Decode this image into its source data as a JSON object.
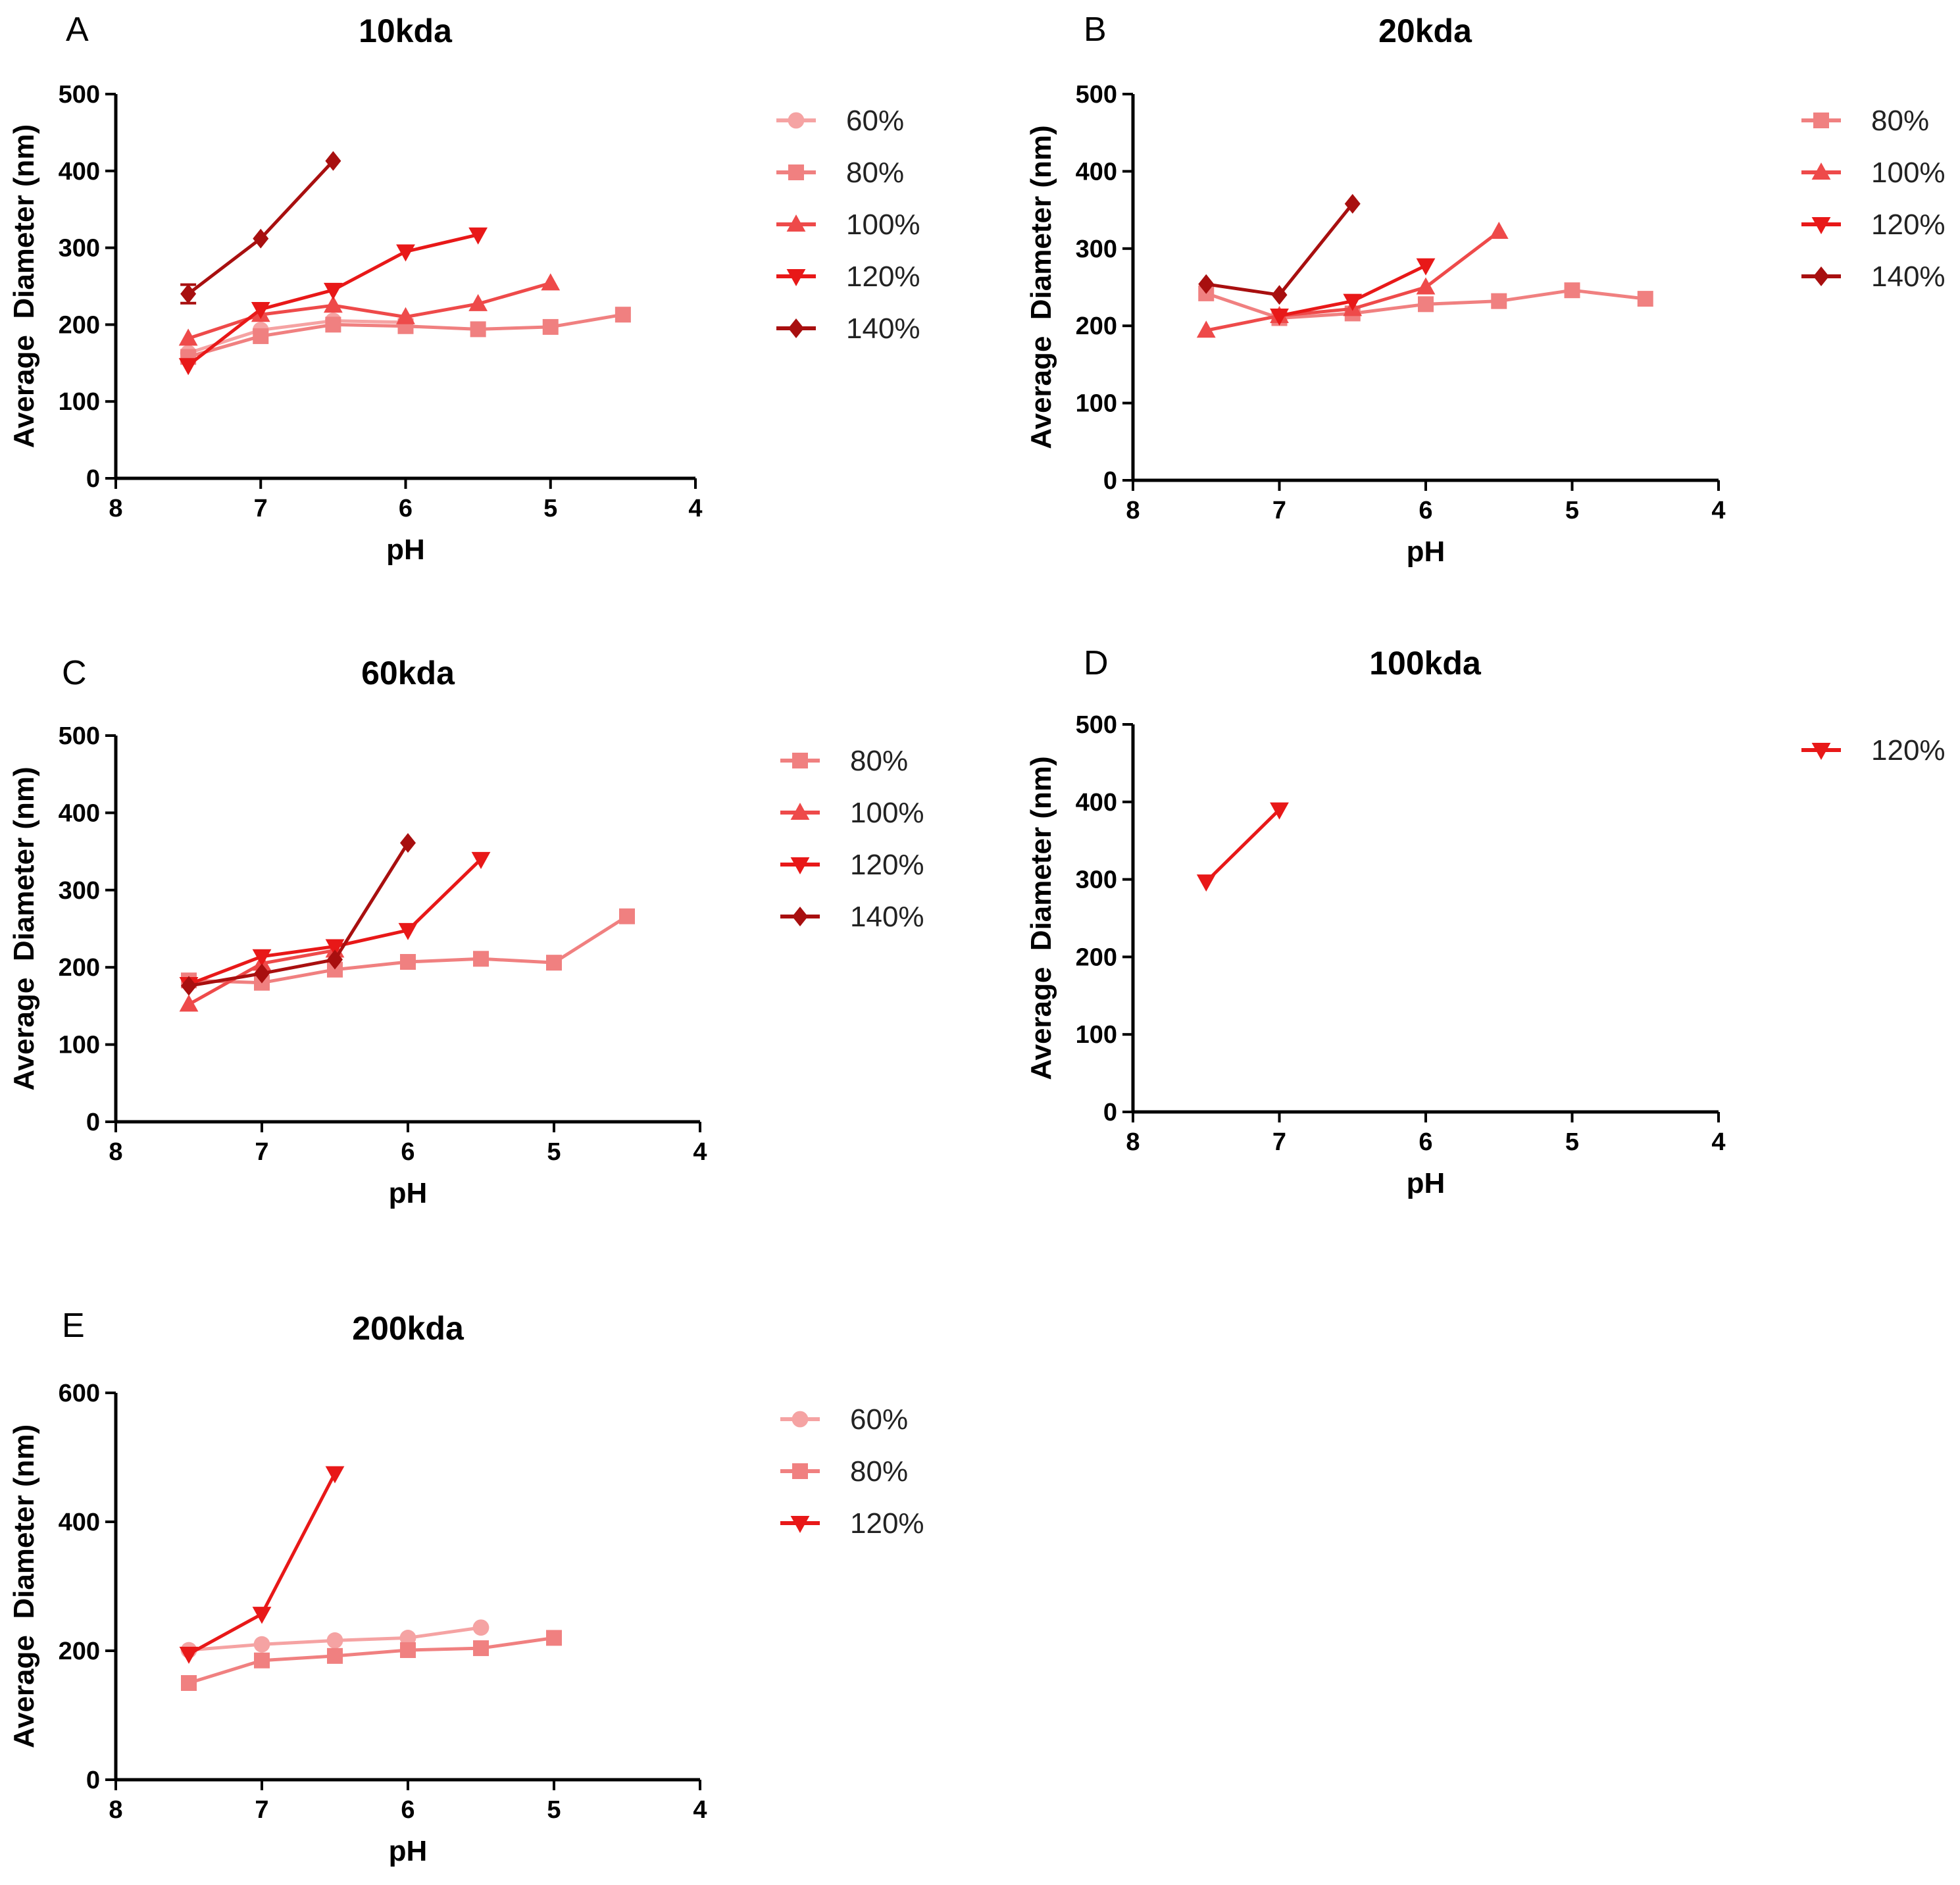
{
  "chart_data": [
    {
      "type": "line",
      "panel": "A",
      "title": "10kda",
      "xlabel": "pH",
      "ylabel": "Average  Diameter (nm)",
      "xlim": [
        8,
        4
      ],
      "ylim": [
        0,
        500
      ],
      "xticks": [
        "8",
        "7",
        "6",
        "5",
        "4"
      ],
      "yticks": [
        "0",
        "100",
        "200",
        "300",
        "400",
        "500"
      ],
      "legend_position": "right",
      "series": [
        {
          "name": "60%",
          "marker": "circle",
          "color": "#f5a3a3",
          "x": [
            7.5,
            7.0,
            6.5,
            6.0
          ],
          "y": [
            163,
            193,
            205,
            203
          ]
        },
        {
          "name": "80%",
          "marker": "square",
          "color": "#f08080",
          "x": [
            7.5,
            7.0,
            6.5,
            6.0,
            5.5,
            5.0,
            4.5
          ],
          "y": [
            158,
            185,
            200,
            198,
            194,
            197,
            213
          ]
        },
        {
          "name": "100%",
          "marker": "triangle-up",
          "color": "#ee4a4a",
          "x": [
            7.5,
            7.0,
            6.5,
            6.0,
            5.5,
            5.0
          ],
          "y": [
            182,
            213,
            225,
            210,
            227,
            254
          ]
        },
        {
          "name": "120%",
          "marker": "triangle-down",
          "color": "#e81818",
          "x": [
            7.5,
            7.0,
            6.5,
            6.0,
            5.5
          ],
          "y": [
            147,
            220,
            245,
            295,
            317
          ]
        },
        {
          "name": "140%",
          "marker": "diamond",
          "color": "#a80f0f",
          "x": [
            7.5,
            7.0,
            6.5
          ],
          "y": [
            240,
            312,
            413
          ]
        }
      ]
    },
    {
      "type": "line",
      "panel": "B",
      "title": "20kda",
      "xlabel": "pH",
      "ylabel": "Average  Diameter (nm)",
      "xlim": [
        8,
        4
      ],
      "ylim": [
        0,
        500
      ],
      "xticks": [
        "8",
        "7",
        "6",
        "5",
        "4"
      ],
      "yticks": [
        "0",
        "100",
        "200",
        "300",
        "400",
        "500"
      ],
      "legend_position": "right",
      "series": [
        {
          "name": "80%",
          "marker": "square",
          "color": "#f08080",
          "x": [
            7.5,
            7.0,
            6.5,
            6.0,
            5.5,
            5.0,
            4.5
          ],
          "y": [
            242,
            210,
            216,
            228,
            232,
            246,
            235
          ]
        },
        {
          "name": "100%",
          "marker": "triangle-up",
          "color": "#ee4a4a",
          "x": [
            7.5,
            7.0,
            6.5,
            6.0,
            5.5
          ],
          "y": [
            194,
            213,
            222,
            250,
            322
          ]
        },
        {
          "name": "120%",
          "marker": "triangle-down",
          "color": "#e81818",
          "x": [
            7.0,
            6.5,
            6.0
          ],
          "y": [
            213,
            232,
            278
          ]
        },
        {
          "name": "140%",
          "marker": "diamond",
          "color": "#a80f0f",
          "x": [
            7.5,
            7.0,
            6.5
          ],
          "y": [
            254,
            240,
            358
          ]
        }
      ]
    },
    {
      "type": "line",
      "panel": "C",
      "title": "60kda",
      "xlabel": "pH",
      "ylabel": "Average  Diameter (nm)",
      "xlim": [
        8,
        4
      ],
      "ylim": [
        0,
        500
      ],
      "xticks": [
        "8",
        "7",
        "6",
        "5",
        "4"
      ],
      "yticks": [
        "0",
        "100",
        "200",
        "300",
        "400",
        "500"
      ],
      "legend_position": "right",
      "series": [
        {
          "name": "80%",
          "marker": "square",
          "color": "#f08080",
          "x": [
            7.5,
            7.0,
            6.5,
            6.0,
            5.5,
            5.0,
            4.5
          ],
          "y": [
            183,
            180,
            197,
            207,
            211,
            206,
            266
          ]
        },
        {
          "name": "100%",
          "marker": "triangle-up",
          "color": "#ee4a4a",
          "x": [
            7.5,
            7.0,
            6.5
          ],
          "y": [
            152,
            205,
            222
          ]
        },
        {
          "name": "120%",
          "marker": "triangle-down",
          "color": "#e81818",
          "x": [
            7.5,
            7.0,
            6.5,
            6.0,
            5.5
          ],
          "y": [
            178,
            214,
            227,
            248,
            340
          ]
        },
        {
          "name": "140%",
          "marker": "diamond",
          "color": "#a80f0f",
          "x": [
            7.5,
            7.0,
            6.5,
            6.0
          ],
          "y": [
            176,
            192,
            210,
            361
          ]
        }
      ]
    },
    {
      "type": "line",
      "panel": "D",
      "title": "100kda",
      "xlabel": "pH",
      "ylabel": "Average  Diameter (nm)",
      "xlim": [
        8,
        4
      ],
      "ylim": [
        0,
        500
      ],
      "xticks": [
        "8",
        "7",
        "6",
        "5",
        "4"
      ],
      "yticks": [
        "0",
        "100",
        "200",
        "300",
        "400",
        "500"
      ],
      "legend_position": "right",
      "series": [
        {
          "name": "120%",
          "marker": "triangle-down",
          "color": "#e81818",
          "x": [
            7.5,
            7.0
          ],
          "y": [
            297,
            390
          ]
        }
      ]
    },
    {
      "type": "line",
      "panel": "E",
      "title": "200kda",
      "xlabel": "pH",
      "ylabel": "Average  Diameter (nm)",
      "xlim": [
        8,
        4
      ],
      "ylim": [
        0,
        600
      ],
      "xticks": [
        "8",
        "7",
        "6",
        "5",
        "4"
      ],
      "yticks": [
        "0",
        "200",
        "400",
        "600"
      ],
      "legend_position": "right",
      "series": [
        {
          "name": "60%",
          "marker": "circle",
          "color": "#f5a3a3",
          "x": [
            7.5,
            7.0,
            6.5,
            6.0,
            5.5
          ],
          "y": [
            201,
            210,
            216,
            220,
            236
          ]
        },
        {
          "name": "80%",
          "marker": "square",
          "color": "#f08080",
          "x": [
            7.5,
            7.0,
            6.5,
            6.0,
            5.5,
            5.0
          ],
          "y": [
            150,
            185,
            192,
            201,
            204,
            220
          ]
        },
        {
          "name": "120%",
          "marker": "triangle-down",
          "color": "#e81818",
          "x": [
            7.5,
            7.0,
            6.5
          ],
          "y": [
            195,
            257,
            475
          ]
        }
      ]
    }
  ]
}
